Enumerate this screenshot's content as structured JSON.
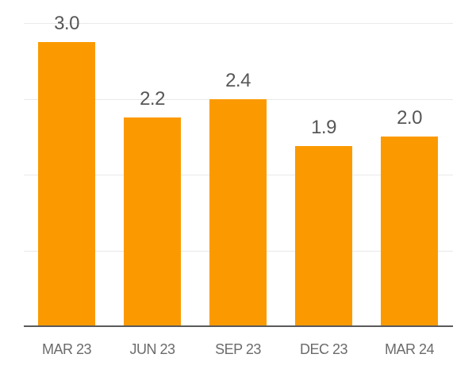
{
  "chart_data": {
    "type": "bar",
    "title": "",
    "xlabel": "",
    "ylabel": "",
    "categories": [
      "MAR 23",
      "JUN 23",
      "SEP 23",
      "DEC 23",
      "MAR 24"
    ],
    "values": [
      3.0,
      2.2,
      2.4,
      1.9,
      2.0
    ],
    "value_labels": [
      "3.0",
      "2.2",
      "2.4",
      "1.9",
      "2.0"
    ],
    "ylim": [
      0,
      3.2
    ],
    "gridline_values": [
      0.8,
      1.6,
      2.4,
      3.2
    ],
    "grid": "horizontal-only",
    "legend_position": "none",
    "y_axis_tick_labels_visible": false,
    "colors": {
      "bar": "#FB9A00",
      "gridline": "#E9E9E9",
      "axis_line": "#5A5A5A",
      "value_label": "#575757",
      "tick_label": "#6B6B6B",
      "background": "#FFFFFF"
    }
  }
}
